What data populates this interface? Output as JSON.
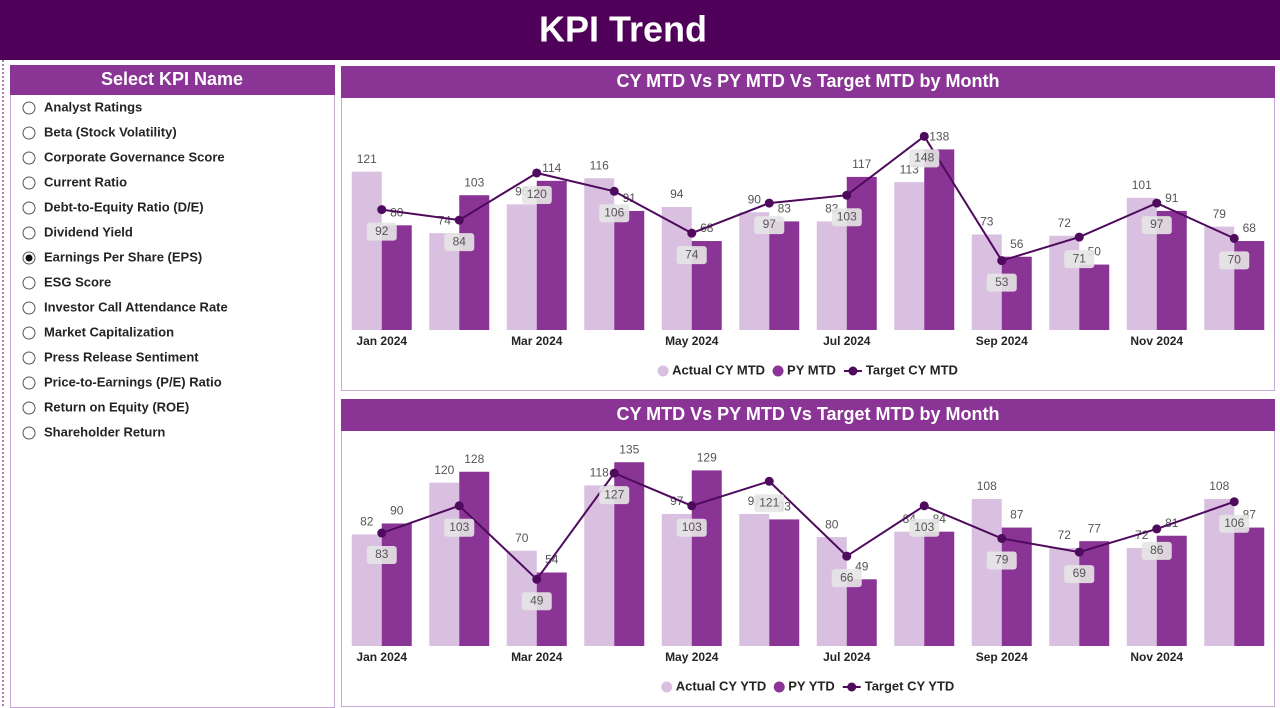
{
  "header": {
    "title": "KPI Trend"
  },
  "slicer": {
    "title": "Select KPI Name",
    "options": [
      {
        "label": "Analyst Ratings",
        "checked": false
      },
      {
        "label": "Beta (Stock Volatility)",
        "checked": false
      },
      {
        "label": "Corporate Governance Score",
        "checked": false
      },
      {
        "label": "Current Ratio",
        "checked": false
      },
      {
        "label": "Debt-to-Equity Ratio (D/E)",
        "checked": false
      },
      {
        "label": "Dividend Yield",
        "checked": false
      },
      {
        "label": "Earnings Per Share (EPS)",
        "checked": true
      },
      {
        "label": "ESG Score",
        "checked": false
      },
      {
        "label": "Investor Call Attendance Rate",
        "checked": false
      },
      {
        "label": "Market Capitalization",
        "checked": false
      },
      {
        "label": "Press Release Sentiment",
        "checked": false
      },
      {
        "label": "Price-to-Earnings (P/E) Ratio",
        "checked": false
      },
      {
        "label": "Return on Equity (ROE)",
        "checked": false
      },
      {
        "label": "Shareholder Return",
        "checked": false
      }
    ]
  },
  "chart_data": [
    {
      "type": "combo",
      "title": "CY MTD Vs PY MTD Vs Target MTD by Month",
      "categories": [
        "Jan 2024",
        null,
        "Mar 2024",
        null,
        "May 2024",
        null,
        "Jul 2024",
        null,
        "Sep 2024",
        null,
        "Nov 2024",
        null
      ],
      "series": [
        {
          "name": "Actual CY MTD",
          "type": "bar",
          "color": "#d9bfe0",
          "values": [
            121,
            74,
            96,
            116,
            94,
            90,
            83,
            113,
            73,
            72,
            101,
            79
          ]
        },
        {
          "name": "PY MTD",
          "type": "bar",
          "color": "#8a3596",
          "values": [
            80,
            103,
            114,
            91,
            68,
            83,
            117,
            138,
            56,
            50,
            91,
            68
          ]
        },
        {
          "name": "Target CY MTD",
          "type": "line",
          "color": "#4e0a5c",
          "values": [
            92,
            84,
            120,
            106,
            74,
            97,
            103,
            148,
            53,
            71,
            97,
            70
          ]
        }
      ],
      "ylim": [
        0,
        175
      ]
    },
    {
      "type": "combo",
      "title": "CY MTD Vs PY MTD Vs Target MTD by Month",
      "categories": [
        "Jan 2024",
        null,
        "Mar 2024",
        null,
        "May 2024",
        null,
        "Jul 2024",
        null,
        "Sep 2024",
        null,
        "Nov 2024",
        null
      ],
      "series": [
        {
          "name": "Actual CY YTD",
          "type": "bar",
          "color": "#d9bfe0",
          "values": [
            82,
            120,
            70,
            118,
            97,
            97,
            80,
            84,
            108,
            72,
            72,
            108
          ]
        },
        {
          "name": "PY YTD",
          "type": "bar",
          "color": "#8a3596",
          "values": [
            90,
            128,
            54,
            135,
            129,
            93,
            49,
            84,
            87,
            77,
            81,
            87
          ]
        },
        {
          "name": "Target CY YTD",
          "type": "line",
          "color": "#4e0a5c",
          "values": [
            83,
            103,
            49,
            127,
            103,
            121,
            66,
            103,
            79,
            69,
            86,
            106
          ]
        }
      ],
      "ylim": [
        0,
        155
      ]
    }
  ]
}
